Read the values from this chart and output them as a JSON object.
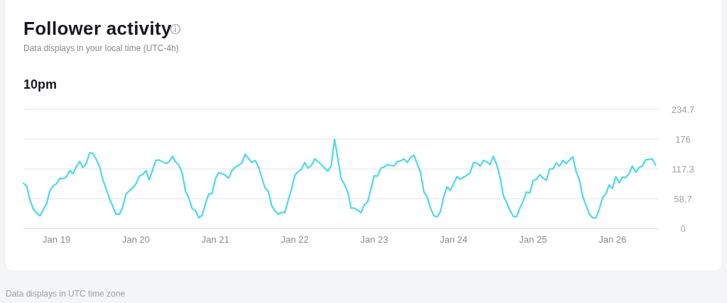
{
  "chart_data": {
    "type": "line",
    "title": "Follower activity",
    "subtitle": "Data displays in your local time (UTC-4h)",
    "annotations": [
      "10pm",
      "Data displays in UTC time zone"
    ],
    "x": [
      "--01-18T14:00",
      "--01-18T15:00",
      "--01-18T16:00",
      "--01-18T17:00",
      "--01-18T18:00",
      "--01-18T19:00",
      "--01-18T21:00",
      "--01-18T22:00",
      "--01-18T23:00",
      "--01-19T00:00",
      "--01-19T01:00",
      "--01-19T02:00",
      "--01-19T03:00",
      "--01-19T04:00",
      "--01-19T05:00",
      "--01-19T06:00",
      "--01-19T07:00",
      "--01-19T08:00",
      "--01-19T09:00",
      "--01-19T10:00",
      "--01-19T11:00",
      "--01-19T12:00",
      "--01-19T13:00",
      "--01-19T14:00",
      "--01-19T16:00",
      "--01-19T18:00",
      "--01-19T19:00",
      "--01-19T20:00",
      "--01-19T21:00",
      "--01-19T23:00",
      "--01-20T00:00",
      "--01-20T01:00",
      "--01-20T02:00",
      "--01-20T03:00",
      "--01-20T04:00",
      "--01-20T06:00",
      "--01-20T07:00",
      "--01-20T09:00",
      "--01-20T10:00",
      "--01-20T11:00",
      "--01-20T12:00",
      "--01-20T13:00",
      "--01-20T14:00",
      "--01-20T15:00",
      "--01-20T16:00",
      "--01-20T17:00",
      "--01-20T18:00",
      "--01-20T19:00",
      "--01-20T20:00",
      "--01-20T21:00",
      "--01-20T22:00",
      "--01-20T23:00",
      "--01-21T00:00",
      "--01-21T01:00",
      "--01-21T02:00",
      "--01-21T03:00",
      "--01-21T04:00",
      "--01-21T05:00",
      "--01-21T06:00",
      "--01-21T08:00",
      "--01-21T09:00",
      "--01-21T10:00",
      "--01-21T11:00",
      "--01-21T12:00",
      "--01-21T13:00",
      "--01-21T14:00",
      "--01-21T15:00",
      "--01-21T16:00",
      "--01-21T17:00",
      "--01-21T18:00",
      "--01-21T19:00",
      "--01-21T20:00",
      "--01-21T21:00",
      "--01-21T22:00",
      "--01-21T23:00",
      "--01-22T00:00",
      "--01-22T01:00",
      "--01-22T02:00",
      "--01-22T03:00",
      "--01-22T04:00",
      "--01-22T05:00",
      "--01-22T06:00",
      "--01-22T07:00",
      "--01-22T08:00",
      "--01-22T09:00",
      "--01-22T10:00",
      "--01-22T11:00",
      "--01-22T12:00",
      "--01-22T13:00",
      "--01-22T14:00",
      "--01-22T15:00",
      "--01-22T16:00",
      "--01-22T17:00",
      "--01-22T18:00",
      "--01-22T19:00",
      "--01-22T20:00",
      "--01-22T21:00",
      "--01-22T22:00",
      "--01-23T00:00",
      "--01-23T01:00",
      "--01-23T02:00",
      "--01-23T03:00",
      "--01-23T04:00",
      "--01-23T05:00",
      "--01-23T06:00",
      "--01-23T07:00",
      "--01-23T08:00",
      "--01-23T09:00",
      "--01-23T10:00",
      "--01-23T11:00",
      "--01-23T12:00",
      "--01-23T14:00",
      "--01-23T15:00",
      "--01-23T16:00",
      "--01-23T17:00",
      "--01-23T18:00",
      "--01-23T19:00",
      "--01-23T20:00",
      "--01-23T21:00",
      "--01-23T22:00",
      "--01-23T23:00",
      "--01-24T01:00",
      "--01-24T02:00",
      "--01-24T03:00",
      "--01-24T04:00",
      "--01-24T05:00",
      "--01-24T06:00",
      "--01-24T07:00",
      "--01-24T08:00",
      "--01-24T09:00",
      "--01-24T10:00",
      "--01-24T11:00",
      "--01-24T12:00",
      "--01-24T13:00",
      "--01-24T14:00",
      "--01-24T15:00",
      "--01-24T16:00",
      "--01-24T17:00",
      "--01-24T18:00",
      "--01-24T19:00",
      "--01-24T20:00",
      "--01-24T21:00",
      "--01-24T22:00",
      "--01-24T23:00",
      "--01-25T00:00",
      "--01-25T01:00",
      "--01-25T02:00",
      "--01-25T03:00",
      "--01-25T04:00",
      "--01-25T05:00",
      "--01-25T06:00",
      "--01-25T07:00",
      "--01-25T08:00",
      "--01-25T09:00",
      "--01-25T10:00",
      "--01-25T12:00",
      "--01-25T13:00",
      "--01-25T14:00",
      "--01-25T15:00",
      "--01-25T17:00",
      "--01-25T18:00",
      "--01-25T19:00",
      "--01-25T20:00",
      "--01-25T21:00",
      "--01-25T22:00",
      "--01-25T23:00",
      "--01-26T00:00",
      "--01-26T01:00",
      "--01-26T02:00",
      "--01-26T03:00",
      "--01-26T04:00",
      "--01-26T05:00",
      "--01-26T06:00",
      "--01-26T07:00",
      "--01-26T08:00",
      "--01-26T09:00",
      "--01-26T10:00",
      "--01-26T12:00",
      "--01-26T13:00"
    ],
    "series": [
      {
        "color": "#4dd9e8",
        "values": [
          89,
          83,
          56,
          38,
          30,
          25,
          49,
          75,
          84,
          88,
          99,
          98,
          102,
          114,
          108,
          122,
          132,
          120,
          128,
          149,
          148,
          136,
          122,
          96,
          59,
          28,
          28,
          42,
          68,
          80,
          88,
          103,
          106,
          114,
          96,
          134,
          135,
          128,
          131,
          142,
          131,
          125,
          108,
          73,
          59,
          39,
          35,
          21,
          26,
          49,
          68,
          69,
          98,
          110,
          108,
          105,
          99,
          114,
          121,
          129,
          146,
          138,
          130,
          134,
          122,
          101,
          80,
          73,
          45,
          35,
          28,
          32,
          31,
          56,
          77,
          105,
          112,
          117,
          130,
          119,
          124,
          137,
          132,
          126,
          119,
          113,
          124,
          176,
          138,
          98,
          87,
          72,
          40,
          40,
          36,
          31,
          47,
          52,
          104,
          103,
          119,
          121,
          126,
          124,
          123,
          132,
          133,
          137,
          130,
          140,
          144,
          110,
          72,
          62,
          40,
          25,
          23,
          33,
          63,
          82,
          75,
          102,
          97,
          101,
          105,
          110,
          130,
          129,
          123,
          134,
          131,
          126,
          142,
          126,
          101,
          65,
          51,
          36,
          24,
          23,
          40,
          54,
          72,
          70,
          94,
          97,
          106,
          99,
          95,
          117,
          117,
          129,
          123,
          134,
          128,
          141,
          112,
          96,
          63,
          28,
          21,
          21,
          38,
          61,
          68,
          86,
          79,
          102,
          90,
          101,
          100,
          108,
          123,
          111,
          120,
          123,
          135,
          137,
          125
        ]
      }
    ],
    "xlim": [
      "--01-18T14:00",
      "--01-26T14:00"
    ],
    "xticks": [
      {
        "value": "--01-19",
        "label": "Jan 19"
      },
      {
        "value": "--01-20",
        "label": "Jan 20"
      },
      {
        "value": "--01-21",
        "label": "Jan 21"
      },
      {
        "value": "--01-22",
        "label": "Jan 22"
      },
      {
        "value": "--01-23",
        "label": "Jan 23"
      },
      {
        "value": "--01-24",
        "label": "Jan 24"
      },
      {
        "value": "--01-25",
        "label": "Jan 25"
      },
      {
        "value": "--01-26",
        "label": "Jan 26"
      }
    ],
    "ylim": [
      0,
      234.7
    ],
    "yticks": [
      0,
      58.7,
      117.3,
      176,
      234.7
    ],
    "grid": "y",
    "marker": "none",
    "line_style": "solid"
  }
}
